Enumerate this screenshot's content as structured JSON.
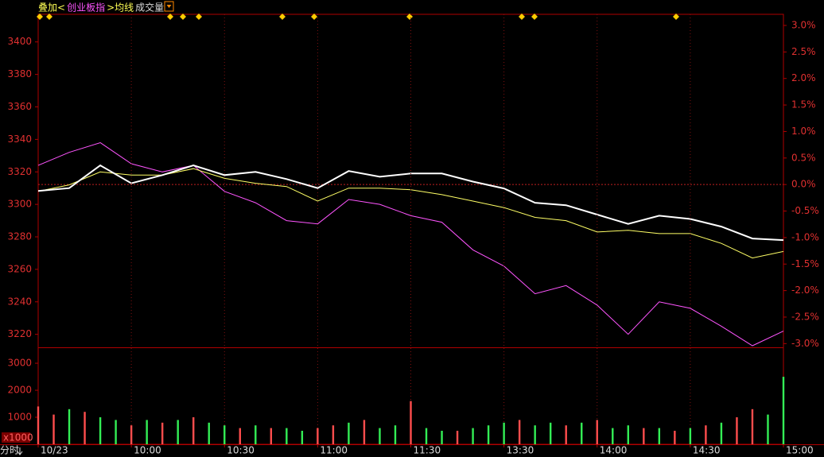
{
  "chart_data": [
    {
      "type": "line",
      "header": [
        {
          "text": "叠加<",
          "color": "#ffff55"
        },
        {
          "text": "创业板指",
          "color": "#ff55ff"
        },
        {
          "text": ">均线",
          "color": "#ffff55"
        },
        {
          "text": "成交量",
          "color": "#dddddd"
        }
      ],
      "x": [
        0,
        10,
        20,
        30,
        40,
        50,
        60,
        70,
        80,
        90,
        100,
        110,
        120,
        130,
        140,
        150,
        160,
        170,
        180,
        190,
        200,
        210,
        220,
        230,
        240
      ],
      "xlim": [
        0,
        240
      ],
      "ylim": [
        3212,
        3417
      ],
      "yticks": [
        3220,
        3240,
        3260,
        3280,
        3300,
        3320,
        3340,
        3360,
        3380,
        3400
      ],
      "y2lim": [
        -3.07,
        3.21
      ],
      "y2ticks": [
        {
          "value": 3,
          "label": "3.0%"
        },
        {
          "value": 2.5,
          "label": "2.5%"
        },
        {
          "value": 2,
          "label": "2.0%"
        },
        {
          "value": 1.5,
          "label": "1.5%"
        },
        {
          "value": 1,
          "label": "1.0%"
        },
        {
          "value": 0.5,
          "label": "0.5%"
        },
        {
          "value": 0,
          "label": "0.0%"
        },
        {
          "value": -0.5,
          "label": "-0.5%"
        },
        {
          "value": -1,
          "label": "-1.0%"
        },
        {
          "value": -1.5,
          "label": "-1.5%"
        },
        {
          "value": -2,
          "label": "-2.0%"
        },
        {
          "value": -2.5,
          "label": "-2.5%"
        },
        {
          "value": -3,
          "label": "-3.0%"
        }
      ],
      "series": [
        {
          "color": "#ff55ff",
          "width": 1,
          "values": [
            3324,
            3332,
            3338,
            3325,
            3320,
            3324,
            3308,
            3301,
            3290,
            3288,
            3303,
            3300,
            3293,
            3289,
            3272,
            3262,
            3245,
            3250,
            3238,
            3220,
            3240,
            3236,
            3225,
            3213,
            3222
          ]
        },
        {
          "color": "#ffff66",
          "width": 1,
          "values": [
            3308,
            3312,
            3320,
            3318,
            3318,
            3322,
            3316,
            3313,
            3311,
            3302,
            3310,
            3310,
            3309,
            3306,
            3302,
            3298,
            3292,
            3290,
            3283,
            3284,
            3282,
            3282,
            3276,
            3267,
            3271
          ]
        },
        {
          "color": "#ffffff",
          "width": 2,
          "values": [
            3308.3,
            3310,
            3324,
            3313,
            3318,
            3324,
            3318,
            3320,
            3315.6,
            3310,
            3320.5,
            3317,
            3319,
            3319,
            3314,
            3309.8,
            3301,
            3299.5,
            3293.7,
            3288,
            3293,
            3291,
            3286.3,
            3279,
            3278
          ]
        }
      ]
    },
    {
      "type": "bar",
      "mode_label": "分时",
      "unit_label": "x1000",
      "x": [
        0,
        5,
        10,
        15,
        20,
        25,
        30,
        35,
        40,
        45,
        50,
        55,
        60,
        65,
        70,
        75,
        80,
        85,
        90,
        95,
        100,
        105,
        110,
        115,
        120,
        125,
        130,
        135,
        140,
        145,
        150,
        155,
        160,
        165,
        170,
        175,
        180,
        185,
        190,
        195,
        200,
        205,
        210,
        215,
        220,
        225,
        230,
        235,
        240
      ],
      "xlim": [
        0,
        240
      ],
      "xticks": [
        {
          "value": 0,
          "label": "10/23"
        },
        {
          "value": 30,
          "label": "10:00"
        },
        {
          "value": 60,
          "label": "10:30"
        },
        {
          "value": 90,
          "label": "11:00"
        },
        {
          "value": 120,
          "label": "11:30"
        },
        {
          "value": 150,
          "label": "13:30"
        },
        {
          "value": 180,
          "label": "14:00"
        },
        {
          "value": 210,
          "label": "14:30"
        },
        {
          "value": 240,
          "label": "15:00"
        }
      ],
      "ylim": [
        0,
        3560
      ],
      "yticks": [
        1000,
        2000,
        3000
      ],
      "values": [
        1400,
        1100,
        1300,
        1200,
        1000,
        900,
        700,
        900,
        800,
        900,
        1000,
        800,
        700,
        600,
        700,
        600,
        600,
        500,
        600,
        700,
        800,
        900,
        600,
        700,
        1600,
        600,
        500,
        500,
        600,
        700,
        800,
        900,
        700,
        800,
        700,
        800,
        900,
        600,
        700,
        600,
        600,
        500,
        600,
        700,
        800,
        1000,
        1300,
        1100,
        2500
      ],
      "colors": [
        "#ff4d4d",
        "#ff4d4d",
        "#33ee55",
        "#ff4d4d",
        "#33ee55",
        "#33ee55",
        "#ff4d4d",
        "#33ee55",
        "#ff4d4d",
        "#33ee55",
        "#ff4d4d",
        "#33ee55",
        "#33ee55",
        "#ff4d4d",
        "#33ee55",
        "#ff4d4d",
        "#33ee55",
        "#33ee55",
        "#ff4d4d",
        "#ff4d4d",
        "#33ee55",
        "#ff4d4d",
        "#33ee55",
        "#33ee55",
        "#ff4d4d",
        "#33ee55",
        "#33ee55",
        "#ff4d4d",
        "#33ee55",
        "#33ee55",
        "#33ee55",
        "#ff4d4d",
        "#33ee55",
        "#33ee55",
        "#ff4d4d",
        "#33ee55",
        "#ff4d4d",
        "#33ee55",
        "#33ee55",
        "#ff4d4d",
        "#33ee55",
        "#ff4d4d",
        "#33ee55",
        "#ff4d4d",
        "#33ee55",
        "#ff4d4d",
        "#ff4d4d",
        "#33ee55",
        "#33ee55"
      ]
    }
  ]
}
